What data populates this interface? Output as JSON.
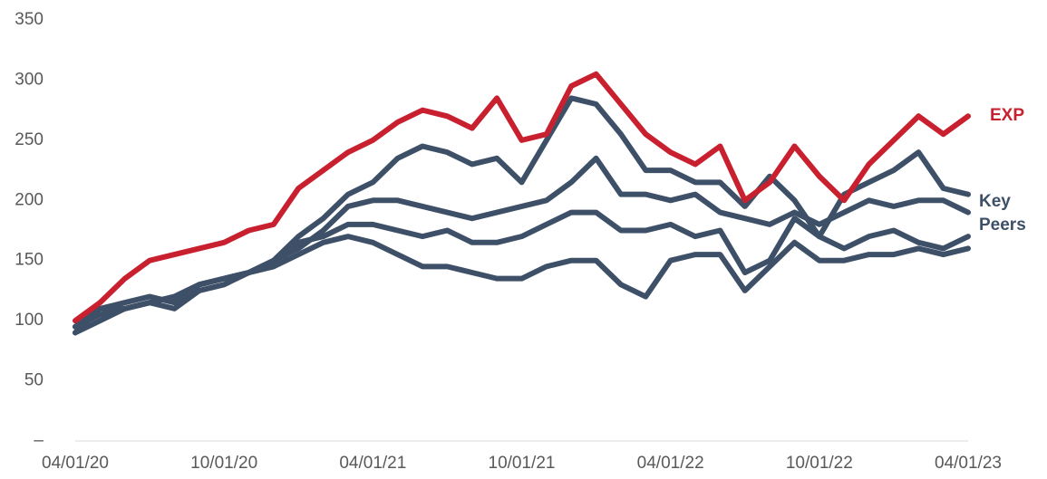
{
  "chart_data": {
    "type": "line",
    "x": [
      "04/01/20",
      null,
      null,
      null,
      null,
      null,
      "10/01/20",
      null,
      null,
      null,
      null,
      null,
      "04/01/21",
      null,
      null,
      null,
      null,
      null,
      "10/01/21",
      null,
      null,
      null,
      null,
      null,
      "04/01/22",
      null,
      null,
      null,
      null,
      null,
      "10/01/22",
      null,
      null,
      null,
      null,
      null,
      "04/01/23"
    ],
    "series": [
      {
        "name": "EXP",
        "color": "#c8202f",
        "values": [
          100,
          115,
          135,
          150,
          155,
          160,
          165,
          175,
          180,
          210,
          225,
          240,
          250,
          265,
          275,
          270,
          260,
          285,
          250,
          255,
          295,
          305,
          280,
          255,
          240,
          230,
          245,
          200,
          215,
          245,
          220,
          200,
          230,
          250,
          270,
          255,
          270
        ]
      },
      {
        "name": "Key Peers",
        "color": "#3d5068",
        "values": [
          95,
          110,
          115,
          120,
          115,
          130,
          135,
          140,
          150,
          170,
          185,
          205,
          215,
          235,
          245,
          240,
          230,
          235,
          215,
          250,
          285,
          280,
          255,
          225,
          225,
          215,
          215,
          195,
          220,
          200,
          170,
          205,
          215,
          225,
          240,
          210,
          205
        ]
      },
      {
        "color": "#3d5068",
        "values": [
          95,
          105,
          110,
          115,
          120,
          130,
          135,
          140,
          150,
          160,
          175,
          195,
          200,
          200,
          195,
          190,
          185,
          190,
          195,
          200,
          215,
          235,
          205,
          205,
          200,
          205,
          190,
          185,
          180,
          190,
          180,
          190,
          200,
          195,
          200,
          200,
          190
        ]
      },
      {
        "color": "#3d5068",
        "values": [
          90,
          110,
          110,
          115,
          120,
          130,
          135,
          140,
          145,
          165,
          170,
          180,
          180,
          175,
          170,
          175,
          165,
          165,
          170,
          180,
          190,
          190,
          175,
          175,
          180,
          170,
          175,
          140,
          150,
          185,
          170,
          160,
          170,
          175,
          165,
          160,
          170
        ]
      },
      {
        "color": "#3d5068",
        "values": [
          90,
          100,
          110,
          115,
          110,
          125,
          130,
          140,
          145,
          155,
          165,
          170,
          165,
          155,
          145,
          145,
          140,
          135,
          135,
          145,
          150,
          150,
          130,
          120,
          150,
          155,
          155,
          125,
          145,
          165,
          150,
          150,
          155,
          155,
          160,
          155,
          160
        ]
      }
    ],
    "ylim": [
      0,
      350
    ],
    "yticks": [
      {
        "value": 0,
        "label": "–"
      },
      50,
      100,
      150,
      200,
      250,
      300,
      350
    ]
  }
}
